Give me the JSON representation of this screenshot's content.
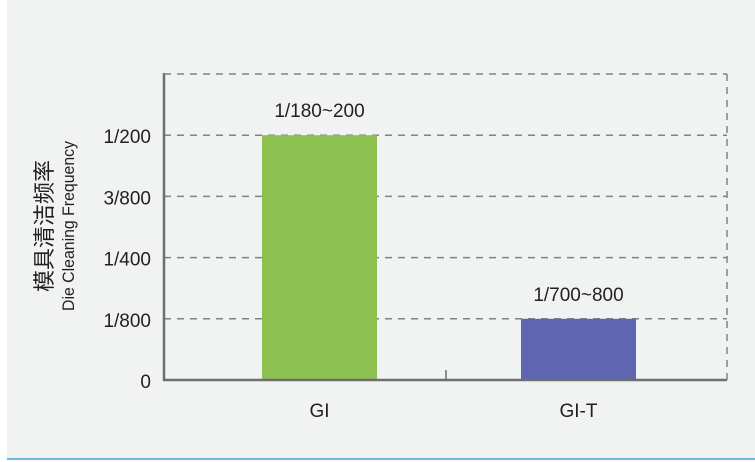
{
  "chart_data": {
    "type": "bar",
    "categories": [
      "GI",
      "GI-T"
    ],
    "values": [
      0.005,
      0.00125
    ],
    "data_labels": [
      "1/180~200",
      "1/700~800"
    ],
    "bar_colors": [
      "#8cc152",
      "#5f65b0"
    ],
    "ylabel_cn": "模具清洁频率",
    "ylabel": "Die Cleaning Frequency",
    "ylim": [
      0,
      0.00625
    ],
    "yticks": [
      0,
      0.00125,
      0.0025,
      0.00375,
      0.005
    ],
    "ytick_labels": [
      "0",
      "1/800",
      "1/400",
      "3/800",
      "1/200"
    ],
    "grid": "dashed horizontal",
    "legend": "none"
  }
}
